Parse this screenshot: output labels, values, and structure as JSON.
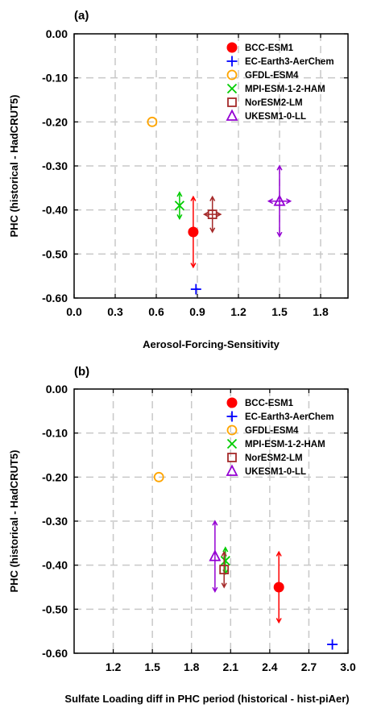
{
  "chart_data": [
    {
      "type": "scatter",
      "panel_label": "(a)",
      "xlabel": "Aerosol-Forcing-Sensitivity",
      "ylabel": "PHC (historical - HadCRUT5)",
      "xlim": [
        0.0,
        2.0
      ],
      "ylim": [
        -0.6,
        0.0
      ],
      "x_ticks": [
        "0.0",
        "0.3",
        "0.6",
        "0.9",
        "1.2",
        "1.5",
        "1.8"
      ],
      "x_tick_values": [
        0.0,
        0.3,
        0.6,
        0.9,
        1.2,
        1.5,
        1.8
      ],
      "y_ticks": [
        "0.00",
        "-0.10",
        "-0.20",
        "-0.30",
        "-0.40",
        "-0.50",
        "-0.60"
      ],
      "y_tick_values": [
        0.0,
        -0.1,
        -0.2,
        -0.3,
        -0.4,
        -0.5,
        -0.6
      ],
      "grid": true,
      "legend_position": "top-right",
      "series": [
        {
          "name": "BCC-ESM1",
          "marker": "filled-circle",
          "color": "#ff0000",
          "x": 0.87,
          "y": -0.45,
          "yerr": 0.08,
          "xerr": 0.0
        },
        {
          "name": "EC-Earth3-AerChem",
          "marker": "plus",
          "color": "#0000ff",
          "x": 0.89,
          "y": -0.58,
          "yerr": 0.0,
          "xerr": 0.0
        },
        {
          "name": "GFDL-ESM4",
          "marker": "open-circle",
          "color": "#ffa500",
          "x": 0.57,
          "y": -0.2,
          "yerr": 0.0,
          "xerr": 0.0
        },
        {
          "name": "MPI-ESM-1-2-HAM",
          "marker": "x",
          "color": "#00cc00",
          "x": 0.77,
          "y": -0.39,
          "yerr": 0.03,
          "xerr": 0.0
        },
        {
          "name": "NorESM2-LM",
          "marker": "open-square",
          "color": "#a52a2a",
          "x": 1.01,
          "y": -0.41,
          "yerr": 0.04,
          "xerr": 0.06
        },
        {
          "name": "UKESM1-0-LL",
          "marker": "open-triangle",
          "color": "#9400d3",
          "x": 1.5,
          "y": -0.38,
          "yerr": 0.08,
          "xerr": 0.08
        }
      ]
    },
    {
      "type": "scatter",
      "panel_label": "(b)",
      "xlabel": "Sulfate Loading diff in PHC period (historical - hist-piAer)",
      "ylabel": "PHC (historical - HadCRUT5)",
      "xlim": [
        0.9,
        3.0
      ],
      "ylim": [
        -0.6,
        0.0
      ],
      "x_ticks": [
        "1.2",
        "1.5",
        "1.8",
        "2.1",
        "2.4",
        "2.7",
        "3.0"
      ],
      "x_tick_values": [
        1.2,
        1.5,
        1.8,
        2.1,
        2.4,
        2.7,
        3.0
      ],
      "y_ticks": [
        "0.00",
        "-0.10",
        "-0.20",
        "-0.30",
        "-0.40",
        "-0.50",
        "-0.60"
      ],
      "y_tick_values": [
        0.0,
        -0.1,
        -0.2,
        -0.3,
        -0.4,
        -0.5,
        -0.6
      ],
      "grid": true,
      "legend_position": "top-right",
      "series": [
        {
          "name": "BCC-ESM1",
          "marker": "filled-circle",
          "color": "#ff0000",
          "x": 2.47,
          "y": -0.45,
          "yerr": 0.08,
          "xerr": 0.0
        },
        {
          "name": "EC-Earth3-AerChem",
          "marker": "plus",
          "color": "#0000ff",
          "x": 2.88,
          "y": -0.58,
          "yerr": 0.0,
          "xerr": 0.0
        },
        {
          "name": "GFDL-ESM4",
          "marker": "open-circle",
          "color": "#ffa500",
          "x": 1.55,
          "y": -0.2,
          "yerr": 0.0,
          "xerr": 0.0
        },
        {
          "name": "MPI-ESM-1-2-HAM",
          "marker": "x",
          "color": "#00cc00",
          "x": 2.06,
          "y": -0.39,
          "yerr": 0.03,
          "xerr": 0.0
        },
        {
          "name": "NorESM2-LM",
          "marker": "open-square",
          "color": "#a52a2a",
          "x": 2.05,
          "y": -0.41,
          "yerr": 0.04,
          "xerr": 0.0
        },
        {
          "name": "UKESM1-0-LL",
          "marker": "open-triangle",
          "color": "#9400d3",
          "x": 1.98,
          "y": -0.38,
          "yerr": 0.08,
          "xerr": 0.0
        }
      ]
    }
  ]
}
